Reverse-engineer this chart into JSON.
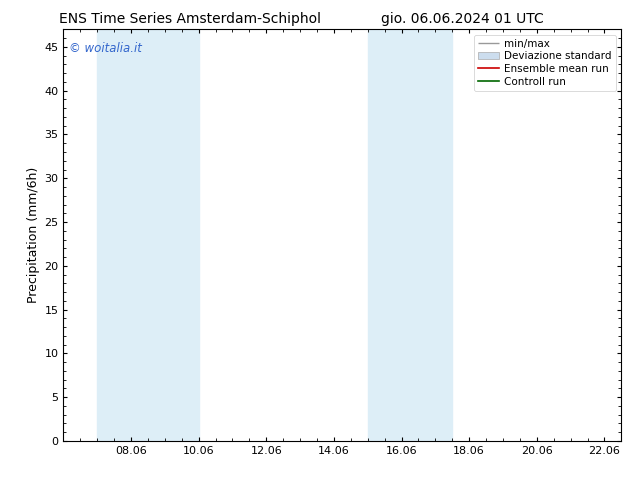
{
  "title_left": "ENS Time Series Amsterdam-Schiphol",
  "title_right": "gio. 06.06.2024 01 UTC",
  "ylabel": "Precipitation (mm/6h)",
  "ylim": [
    0,
    47
  ],
  "yticks": [
    0,
    5,
    10,
    15,
    20,
    25,
    30,
    35,
    40,
    45
  ],
  "xtick_labels": [
    "08.06",
    "10.06",
    "12.06",
    "14.06",
    "16.06",
    "18.06",
    "20.06",
    "22.06"
  ],
  "xtick_positions": [
    2,
    4,
    6,
    8,
    10,
    12,
    14,
    16
  ],
  "xlim": [
    0,
    16.5
  ],
  "shaded_bands": [
    {
      "start": 1.5,
      "end": 2.5,
      "color": "#ddeef8"
    },
    {
      "start": 2.5,
      "end": 4.0,
      "color": "#ddeef8"
    },
    {
      "start": 9.5,
      "end": 10.5,
      "color": "#ddeef8"
    },
    {
      "start": 10.5,
      "end": 11.5,
      "color": "#ddeef8"
    }
  ],
  "watermark_text": "© woitalia.it",
  "watermark_color": "#3366cc",
  "legend_entries": [
    {
      "label": "min/max",
      "color": "#999999"
    },
    {
      "label": "Deviazione standard",
      "color": "#ccddee"
    },
    {
      "label": "Ensemble mean run",
      "color": "#cc0000"
    },
    {
      "label": "Controll run",
      "color": "#006600"
    }
  ],
  "bg_color": "#ffffff",
  "title_fontsize": 10,
  "tick_fontsize": 8,
  "ylabel_fontsize": 9
}
